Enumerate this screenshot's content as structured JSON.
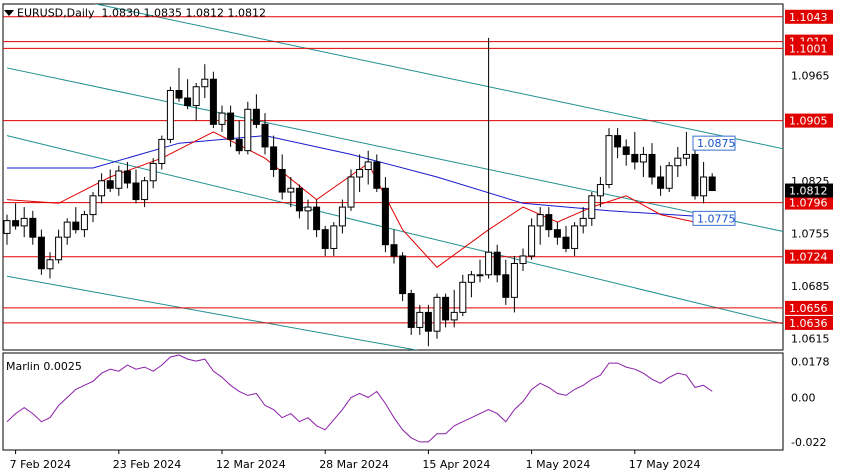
{
  "chart_data": [
    {
      "type": "candlestick",
      "symbol": "EURUSD",
      "timeframe": "Daily",
      "ohlc_label": "1.0830 1.0835 1.0812 1.0812",
      "current_price": "1.0812",
      "ylim": [
        1.06,
        1.106
      ],
      "y_ticks": [
        "1.1043",
        "1.1001",
        "1.0965",
        "1.0905",
        "1.0825",
        "1.0812",
        "1.0755",
        "1.0685",
        "1.0636",
        "1.0615"
      ],
      "x_tick_labels": [
        "7 Feb 2024",
        "23 Feb 2024",
        "12 Mar 2024",
        "28 Mar 2024",
        "15 Apr 2024",
        "1 May 2024",
        "17 May 2024"
      ],
      "x_tick_index": [
        1,
        13,
        25,
        37,
        49,
        61,
        73
      ],
      "horizontal_levels": [
        {
          "value": 1.1043,
          "label": "1.1043"
        },
        {
          "value": 1.101,
          "label": "1.1010"
        },
        {
          "value": 1.1001,
          "label": "1.1001"
        },
        {
          "value": 1.0905,
          "label": "1.0905"
        },
        {
          "value": 1.0796,
          "label": "1.0796"
        },
        {
          "value": 1.0724,
          "label": "1.0724"
        },
        {
          "value": 1.0656,
          "label": "1.0656"
        },
        {
          "value": 1.0636,
          "label": "1.0636"
        }
      ],
      "channel_labels": [
        {
          "value": 1.0875,
          "label": "1.0875"
        },
        {
          "value": 1.0775,
          "label": "1.0775"
        }
      ],
      "candles": [
        [
          1.0755,
          1.078,
          1.074,
          1.0772
        ],
        [
          1.0772,
          1.0795,
          1.076,
          1.0765
        ],
        [
          1.0765,
          1.079,
          1.075,
          1.0775
        ],
        [
          1.0775,
          1.0785,
          1.074,
          1.075
        ],
        [
          1.075,
          1.076,
          1.07,
          1.0708
        ],
        [
          1.0708,
          1.073,
          1.0695,
          1.072
        ],
        [
          1.072,
          1.076,
          1.0715,
          1.075
        ],
        [
          1.075,
          1.0775,
          1.074,
          1.077
        ],
        [
          1.077,
          1.079,
          1.0755,
          1.076
        ],
        [
          1.076,
          1.0785,
          1.075,
          1.078
        ],
        [
          1.078,
          1.081,
          1.077,
          1.0805
        ],
        [
          1.0805,
          1.0835,
          1.0795,
          1.0825
        ],
        [
          1.0825,
          1.084,
          1.081,
          1.0815
        ],
        [
          1.0815,
          1.0845,
          1.0805,
          1.0838
        ],
        [
          1.0838,
          1.085,
          1.0815,
          1.0822
        ],
        [
          1.0822,
          1.084,
          1.0795,
          1.08
        ],
        [
          1.08,
          1.083,
          1.079,
          1.0825
        ],
        [
          1.0825,
          1.0855,
          1.0815,
          1.0848
        ],
        [
          1.0848,
          1.0885,
          1.084,
          1.088
        ],
        [
          1.088,
          1.095,
          1.0875,
          1.0945
        ],
        [
          1.0945,
          1.0975,
          1.093,
          1.0935
        ],
        [
          1.0935,
          1.096,
          1.092,
          1.0925
        ],
        [
          1.0925,
          1.0955,
          1.0905,
          1.095
        ],
        [
          1.095,
          1.098,
          1.0935,
          1.096
        ],
        [
          1.096,
          1.097,
          1.0895,
          1.09
        ],
        [
          1.09,
          1.0925,
          1.089,
          1.0915
        ],
        [
          1.0915,
          1.0925,
          1.087,
          1.088
        ],
        [
          1.088,
          1.0905,
          1.086,
          1.0865
        ],
        [
          1.0865,
          1.093,
          1.086,
          1.092
        ],
        [
          1.092,
          1.094,
          1.0895,
          1.09
        ],
        [
          1.09,
          1.0915,
          1.086,
          1.087
        ],
        [
          1.087,
          1.0885,
          1.083,
          1.084
        ],
        [
          1.084,
          1.086,
          1.08,
          1.081
        ],
        [
          1.081,
          1.083,
          1.079,
          1.0815
        ],
        [
          1.0815,
          1.082,
          1.0775,
          1.0785
        ],
        [
          1.0785,
          1.08,
          1.076,
          1.079
        ],
        [
          1.079,
          1.08,
          1.075,
          1.076
        ],
        [
          1.076,
          1.0765,
          1.0725,
          1.0735
        ],
        [
          1.0735,
          1.077,
          1.0725,
          1.0765
        ],
        [
          1.0765,
          1.08,
          1.0755,
          1.079
        ],
        [
          1.079,
          1.084,
          1.0785,
          1.083
        ],
        [
          1.083,
          1.086,
          1.081,
          1.084
        ],
        [
          1.084,
          1.0865,
          1.082,
          1.085
        ],
        [
          1.085,
          1.086,
          1.081,
          1.0815
        ],
        [
          1.0815,
          1.083,
          1.073,
          1.074
        ],
        [
          1.074,
          1.076,
          1.0715,
          1.0725
        ],
        [
          1.0725,
          1.073,
          1.0665,
          1.0675
        ],
        [
          1.0675,
          1.068,
          1.062,
          1.063
        ],
        [
          1.063,
          1.066,
          1.062,
          1.065
        ],
        [
          1.065,
          1.066,
          1.0605,
          1.0625
        ],
        [
          1.0625,
          1.0675,
          1.0615,
          1.067
        ],
        [
          1.067,
          1.0675,
          1.063,
          1.064
        ],
        [
          1.064,
          1.068,
          1.063,
          1.065
        ],
        [
          1.065,
          1.07,
          1.0645,
          1.069
        ],
        [
          1.069,
          1.0705,
          1.067,
          1.07
        ],
        [
          1.07,
          1.072,
          1.069,
          1.07
        ],
        [
          1.07,
          1.1015,
          1.0695,
          1.073
        ],
        [
          1.073,
          1.074,
          1.069,
          1.07
        ],
        [
          1.07,
          1.072,
          1.066,
          1.067
        ],
        [
          1.067,
          1.0725,
          1.065,
          1.0715
        ],
        [
          1.0715,
          1.0735,
          1.0705,
          1.0725
        ],
        [
          1.0725,
          1.0775,
          1.072,
          1.0765
        ],
        [
          1.0765,
          1.079,
          1.074,
          1.078
        ],
        [
          1.078,
          1.079,
          1.075,
          1.076
        ],
        [
          1.076,
          1.077,
          1.074,
          1.075
        ],
        [
          1.075,
          1.0765,
          1.073,
          1.0735
        ],
        [
          1.0735,
          1.077,
          1.0725,
          1.0765
        ],
        [
          1.0765,
          1.079,
          1.0755,
          1.0775
        ],
        [
          1.0775,
          1.081,
          1.0765,
          1.0805
        ],
        [
          1.0805,
          1.083,
          1.079,
          1.082
        ],
        [
          1.082,
          1.0895,
          1.0815,
          1.0885
        ],
        [
          1.0885,
          1.0895,
          1.0855,
          1.087
        ],
        [
          1.087,
          1.088,
          1.0845,
          1.086
        ],
        [
          1.086,
          1.089,
          1.084,
          1.085
        ],
        [
          1.085,
          1.087,
          1.083,
          1.086
        ],
        [
          1.086,
          1.0875,
          1.082,
          1.083
        ],
        [
          1.083,
          1.0845,
          1.0805,
          1.0815
        ],
        [
          1.0815,
          1.085,
          1.081,
          1.0845
        ],
        [
          1.0845,
          1.087,
          1.083,
          1.0855
        ],
        [
          1.0855,
          1.089,
          1.0845,
          1.086
        ],
        [
          1.086,
          1.0865,
          1.08,
          1.0805
        ],
        [
          1.0805,
          1.085,
          1.0795,
          1.083
        ],
        [
          1.083,
          1.0835,
          1.0812,
          1.0812
        ]
      ],
      "ma_blue": [
        [
          0,
          1.0842
        ],
        [
          10,
          1.0842
        ],
        [
          20,
          1.0875
        ],
        [
          30,
          1.0885
        ],
        [
          40,
          1.086
        ],
        [
          50,
          1.083
        ],
        [
          60,
          1.0795
        ],
        [
          70,
          1.0785
        ],
        [
          80,
          1.0778
        ]
      ],
      "ma_red": [
        [
          0,
          1.08
        ],
        [
          6,
          1.0795
        ],
        [
          12,
          1.083
        ],
        [
          18,
          1.0855
        ],
        [
          24,
          1.089
        ],
        [
          30,
          1.0855
        ],
        [
          36,
          1.08
        ],
        [
          42,
          1.0848
        ],
        [
          46,
          1.076
        ],
        [
          50,
          1.071
        ],
        [
          56,
          1.076
        ],
        [
          60,
          1.079
        ],
        [
          64,
          1.077
        ],
        [
          68,
          1.079
        ],
        [
          72,
          1.0805
        ],
        [
          76,
          1.078
        ],
        [
          80,
          1.077
        ]
      ],
      "channel_lines": [
        {
          "x0": 0,
          "y0": 1.1085,
          "x1": 110,
          "y1": 1.082
        },
        {
          "x0": 0,
          "y0": 1.0975,
          "x1": 110,
          "y1": 1.071
        },
        {
          "x0": 0,
          "y0": 1.0885,
          "x1": 110,
          "y1": 1.058
        },
        {
          "x0": 0,
          "y0": 1.0698,
          "x1": 50,
          "y1": 1.0595
        }
      ]
    },
    {
      "type": "line",
      "name": "Marlin 0.0025",
      "ylim": [
        -0.026,
        0.022
      ],
      "y_ticks": [
        "0.0178",
        "0.00",
        "-0.022"
      ],
      "values": [
        -0.012,
        -0.008,
        -0.005,
        -0.008,
        -0.012,
        -0.01,
        -0.004,
        0.0,
        0.004,
        0.006,
        0.008,
        0.012,
        0.014,
        0.013,
        0.016,
        0.014,
        0.015,
        0.013,
        0.016,
        0.02,
        0.021,
        0.019,
        0.018,
        0.019,
        0.013,
        0.01,
        0.006,
        0.003,
        0.001,
        0.002,
        -0.004,
        -0.006,
        -0.01,
        -0.008,
        -0.012,
        -0.01,
        -0.014,
        -0.016,
        -0.011,
        -0.006,
        0.0,
        0.002,
        0.0,
        0.003,
        -0.003,
        -0.01,
        -0.016,
        -0.02,
        -0.022,
        -0.022,
        -0.018,
        -0.018,
        -0.014,
        -0.012,
        -0.01,
        -0.008,
        -0.006,
        -0.008,
        -0.012,
        -0.006,
        -0.002,
        0.004,
        0.007,
        0.005,
        0.002,
        0.001,
        0.004,
        0.006,
        0.009,
        0.011,
        0.017,
        0.017,
        0.015,
        0.014,
        0.012,
        0.009,
        0.007,
        0.01,
        0.012,
        0.011,
        0.005,
        0.006,
        0.003
      ]
    }
  ]
}
